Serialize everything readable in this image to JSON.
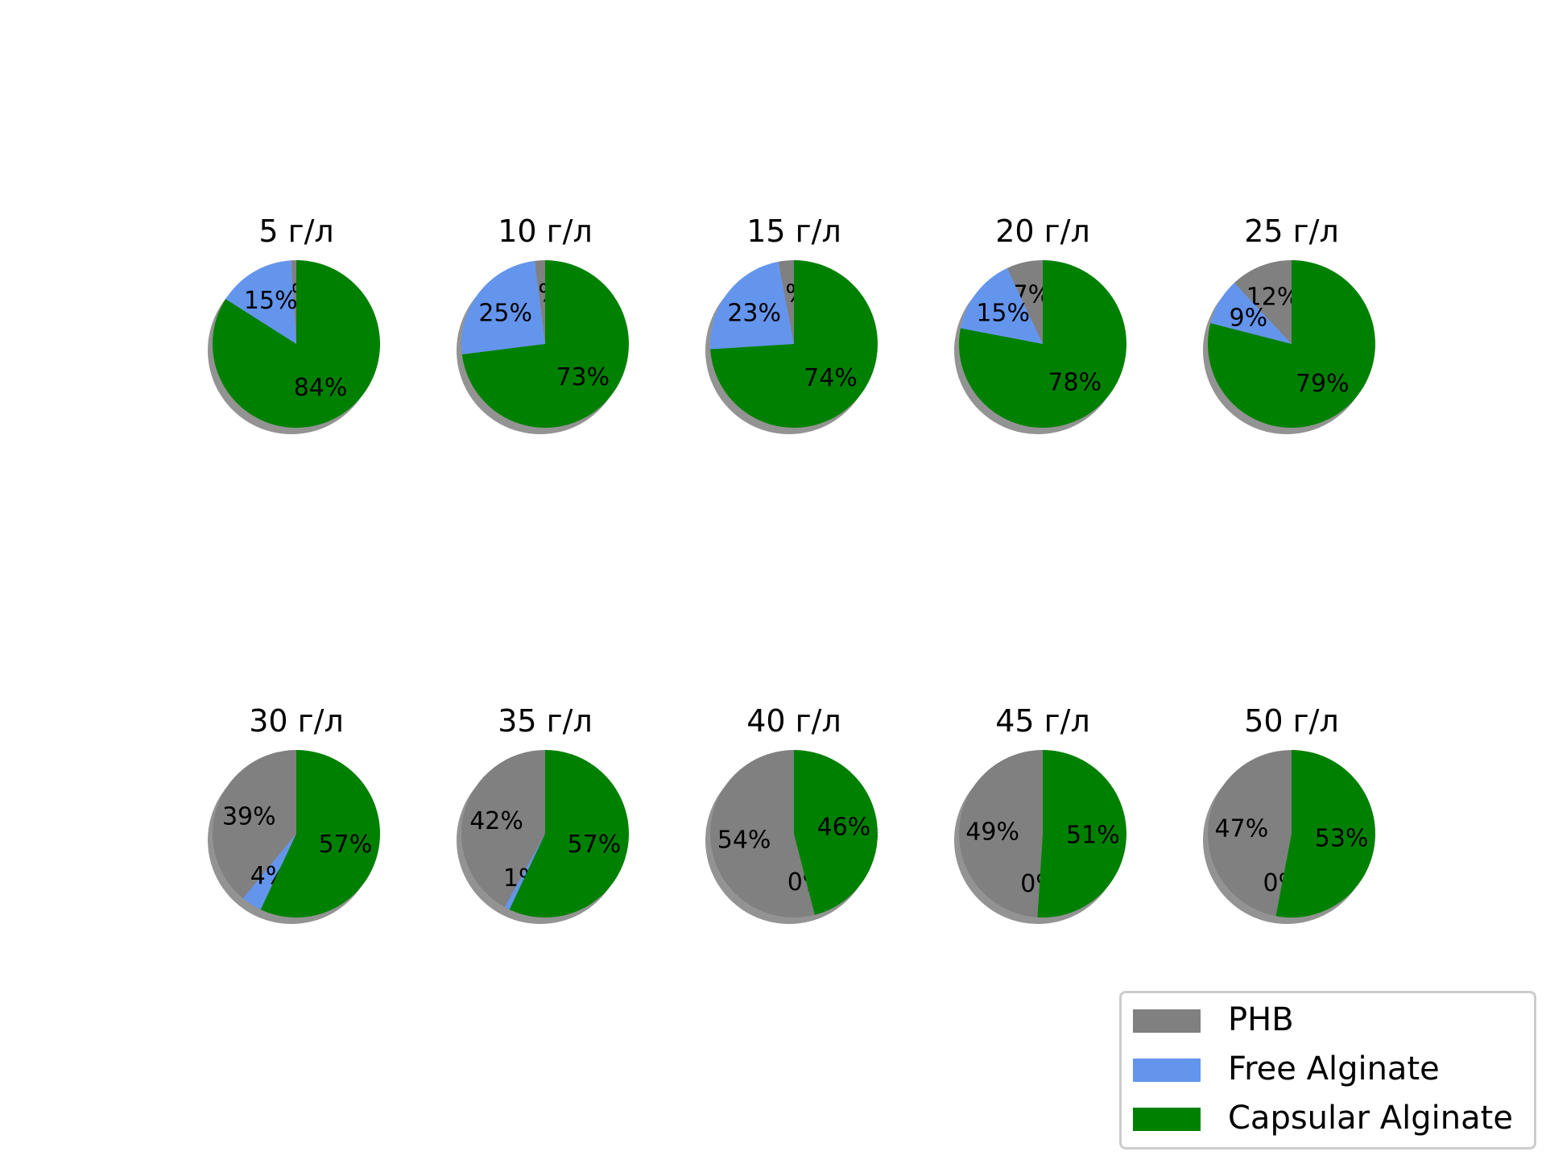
{
  "chart_data": {
    "type": "pie",
    "layout": "grid 2 rows x 5 columns",
    "shadow": true,
    "start_angle_deg": 90,
    "direction": "counterclockwise",
    "series_names": [
      "PHB",
      "Free Alginate",
      "Capsular Alginate"
    ],
    "colors": {
      "PHB": "#808080",
      "Free Alginate": "#6495ed",
      "Capsular Alginate": "#008000"
    },
    "pies": [
      {
        "title": "5 г/л",
        "values": [
          1,
          15,
          84
        ],
        "labels": [
          "1%",
          "15%",
          "84%"
        ]
      },
      {
        "title": "10 г/л",
        "values": [
          2,
          25,
          73
        ],
        "labels": [
          "2%",
          "25%",
          "73%"
        ]
      },
      {
        "title": "15 г/л",
        "values": [
          3,
          23,
          74
        ],
        "labels": [
          "3%",
          "23%",
          "74%"
        ]
      },
      {
        "title": "20 г/л",
        "values": [
          7,
          15,
          78
        ],
        "labels": [
          "7%",
          "15%",
          "78%"
        ]
      },
      {
        "title": "25 г/л",
        "values": [
          12,
          9,
          79
        ],
        "labels": [
          "12%",
          "9%",
          "79%"
        ]
      },
      {
        "title": "30 г/л",
        "values": [
          39,
          4,
          57
        ],
        "labels": [
          "39%",
          "4%",
          "57%"
        ]
      },
      {
        "title": "35 г/л",
        "values": [
          42,
          1,
          57
        ],
        "labels": [
          "42%",
          "1%",
          "57%"
        ]
      },
      {
        "title": "40 г/л",
        "values": [
          54,
          0,
          46
        ],
        "labels": [
          "54%",
          "0%",
          "46%"
        ]
      },
      {
        "title": "45 г/л",
        "values": [
          49,
          0,
          51
        ],
        "labels": [
          "49%",
          "0%",
          "51%"
        ]
      },
      {
        "title": "50 г/л",
        "values": [
          47,
          0,
          53
        ],
        "labels": [
          "47%",
          "0%",
          "53%"
        ]
      }
    ],
    "legend": {
      "position": "bottom-right",
      "entries": [
        "PHB",
        "Free Alginate",
        "Capsular Alginate"
      ]
    }
  }
}
